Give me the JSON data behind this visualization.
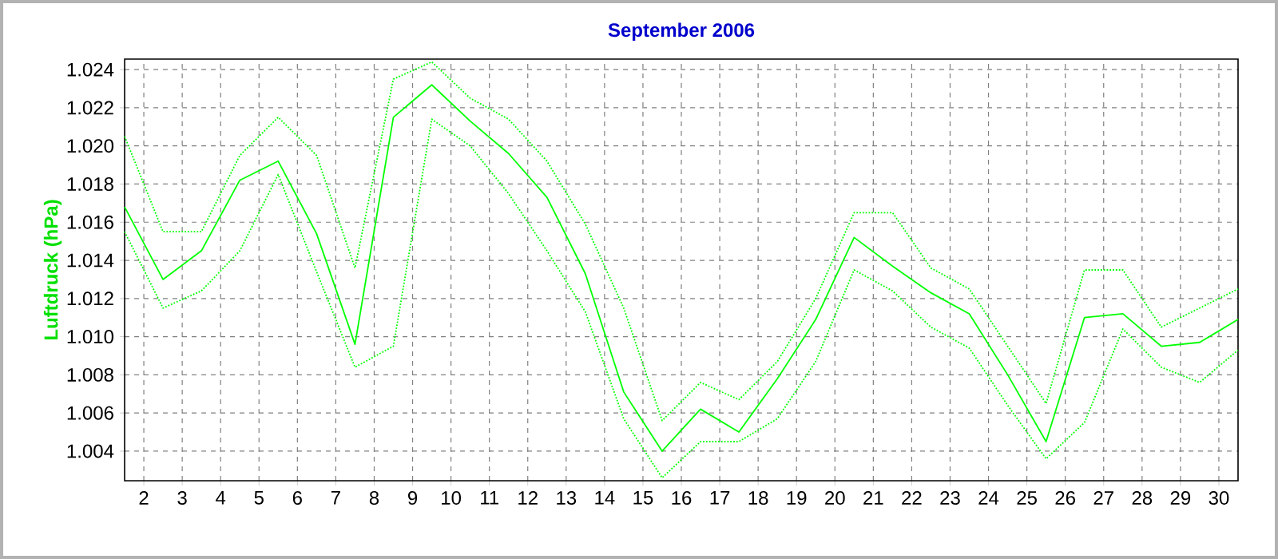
{
  "chart_data": {
    "type": "line",
    "title": "September 2006",
    "ylabel": "Luftdruck  (hPa)",
    "x": [
      1.5,
      2.5,
      3.5,
      4.5,
      5.5,
      6.5,
      7.5,
      8.5,
      9.5,
      10.5,
      11.5,
      12.5,
      13.5,
      14.5,
      15.5,
      16.5,
      17.5,
      18.5,
      19.5,
      20.5,
      21.5,
      22.5,
      23.5,
      24.5,
      25.5,
      26.5,
      27.5,
      28.5,
      29.5,
      30.5
    ],
    "series": [
      {
        "color": "#00ff00",
        "line_style": "dotted",
        "values": [
          1020.5,
          1015.5,
          1015.5,
          1019.5,
          1021.5,
          1019.5,
          1013.6,
          1023.5,
          1024.4,
          1022.5,
          1021.4,
          1019.2,
          1015.9,
          1011.5,
          1005.6,
          1007.6,
          1006.7,
          1008.7,
          1012.0,
          1016.5,
          1016.5,
          1013.6,
          1012.5,
          1009.5,
          1006.5,
          1013.5,
          1013.5,
          1010.5,
          1011.5,
          1012.5
        ]
      },
      {
        "color": "#00ff00",
        "line_style": "solid",
        "values": [
          1016.8,
          1013.0,
          1014.5,
          1018.2,
          1019.2,
          1015.4,
          1009.6,
          1021.5,
          1023.2,
          1021.3,
          1019.6,
          1017.3,
          1013.3,
          1007.1,
          1004.0,
          1006.2,
          1005.0,
          1007.8,
          1010.9,
          1015.2,
          1013.7,
          1012.3,
          1011.2,
          1008.0,
          1004.5,
          1011.0,
          1011.2,
          1009.5,
          1009.7,
          1010.9
        ]
      },
      {
        "color": "#00ff00",
        "line_style": "dotted",
        "values": [
          1015.5,
          1011.5,
          1012.4,
          1014.5,
          1018.5,
          1013.4,
          1008.4,
          1009.5,
          1021.4,
          1020.0,
          1017.5,
          1014.5,
          1011.3,
          1005.7,
          1002.6,
          1004.5,
          1004.5,
          1005.7,
          1008.7,
          1013.5,
          1012.4,
          1010.5,
          1009.4,
          1006.4,
          1003.6,
          1005.5,
          1010.4,
          1008.4,
          1007.6,
          1009.3
        ]
      }
    ],
    "xlim": [
      1.5,
      30.5
    ],
    "xticks": [
      2,
      3,
      4,
      5,
      6,
      7,
      8,
      9,
      10,
      11,
      12,
      13,
      14,
      15,
      16,
      17,
      18,
      19,
      20,
      21,
      22,
      23,
      24,
      25,
      26,
      27,
      28,
      29,
      30
    ],
    "ylim": [
      1002.45,
      1024.55
    ],
    "yticks": [
      {
        "value": 1004,
        "label": "1.004"
      },
      {
        "value": 1006,
        "label": "1.006"
      },
      {
        "value": 1008,
        "label": "1.008"
      },
      {
        "value": 1010,
        "label": "1.010"
      },
      {
        "value": 1012,
        "label": "1.012"
      },
      {
        "value": 1014,
        "label": "1.014"
      },
      {
        "value": 1016,
        "label": "1.016"
      },
      {
        "value": 1018,
        "label": "1.018"
      },
      {
        "value": 1020,
        "label": "1.020"
      },
      {
        "value": 1022,
        "label": "1.022"
      },
      {
        "value": 1024,
        "label": "1.024"
      }
    ],
    "grid": true,
    "marker": "none"
  }
}
